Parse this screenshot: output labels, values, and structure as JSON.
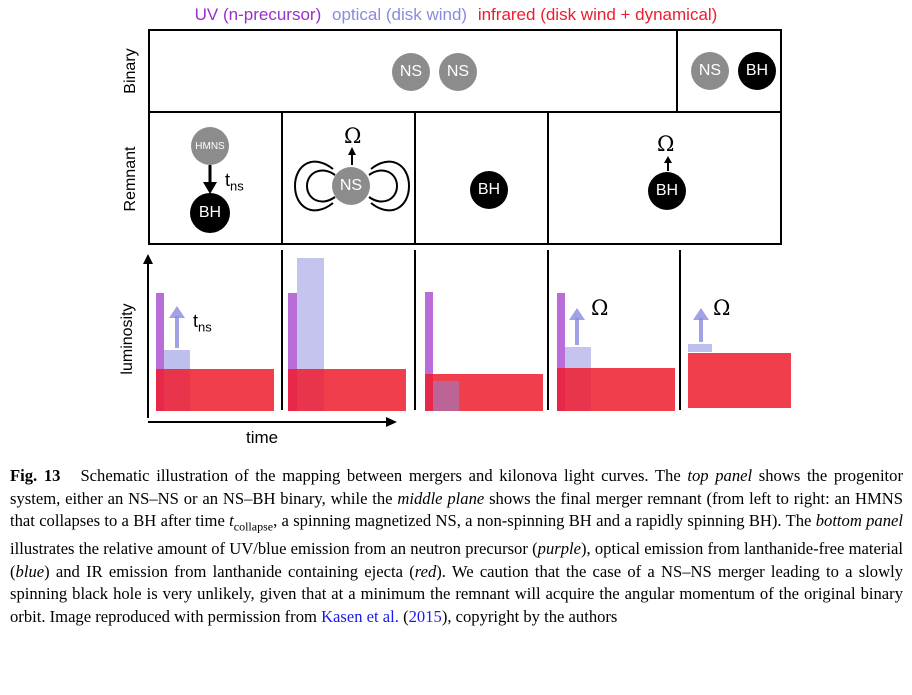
{
  "legend": {
    "uv": "UV (n-precursor)",
    "optical": "optical (disk wind)",
    "infrared": "infrared (disk wind + dynamical)",
    "colors": {
      "uv": "#9b2fc9",
      "optical": "#8a8ae0",
      "infrared": "#ee1c2e"
    }
  },
  "rows": {
    "binary": "Binary",
    "remnant": "Remnant",
    "luminosity": "luminosity",
    "time": "time"
  },
  "binary": {
    "ns1": "NS",
    "ns2": "NS",
    "ns3": "NS",
    "bh": "BH"
  },
  "remnant": {
    "hmns": "HMNS",
    "hmns_bh": "BH",
    "t_main": "t",
    "t_sub": "ns",
    "magnetar": "NS",
    "omega": "Ω",
    "bh_nonspin": "BH",
    "bh_spin": "BH"
  },
  "lum_labels": {
    "t_main": "t",
    "t_sub": "ns",
    "omega1": "Ω",
    "omega2": "Ω"
  },
  "caption": {
    "fig": "Fig. 13",
    "p1": "Schematic illustration of the mapping between mergers and kilonova light curves. The ",
    "i1": "top panel",
    "p2": " shows the progenitor system, either an NS–NS or an NS–BH binary, while the ",
    "i2": "middle plane",
    "p3": " shows the final merger remnant (from left to right: an HMNS that collapses to a BH after time ",
    "t": "t",
    "tsub": "collapse",
    "p4": ", a spinning magnetized NS, a non-spinning BH and a rapidly spinning BH). The ",
    "i3": "bottom panel",
    "p5": " illustrates the relative amount of UV/blue emission from an neutron precursor (",
    "i4": "purple",
    "p6": "), optical emission from lanthanide-free material (",
    "i5": "blue",
    "p7": ") and IR emission from lanthanide containing ejecta (",
    "i6": "red",
    "p8": "). We caution that the case of a NS–NS merger leading to a slowly spinning black hole is very unlikely, given that at a minimum the remnant will acquire the angular momentum of the original binary orbit. Image reproduced with permission from ",
    "link": "Kasen et al.",
    "p9": " (",
    "year": "2015",
    "p10": "), copyright by the authors"
  }
}
